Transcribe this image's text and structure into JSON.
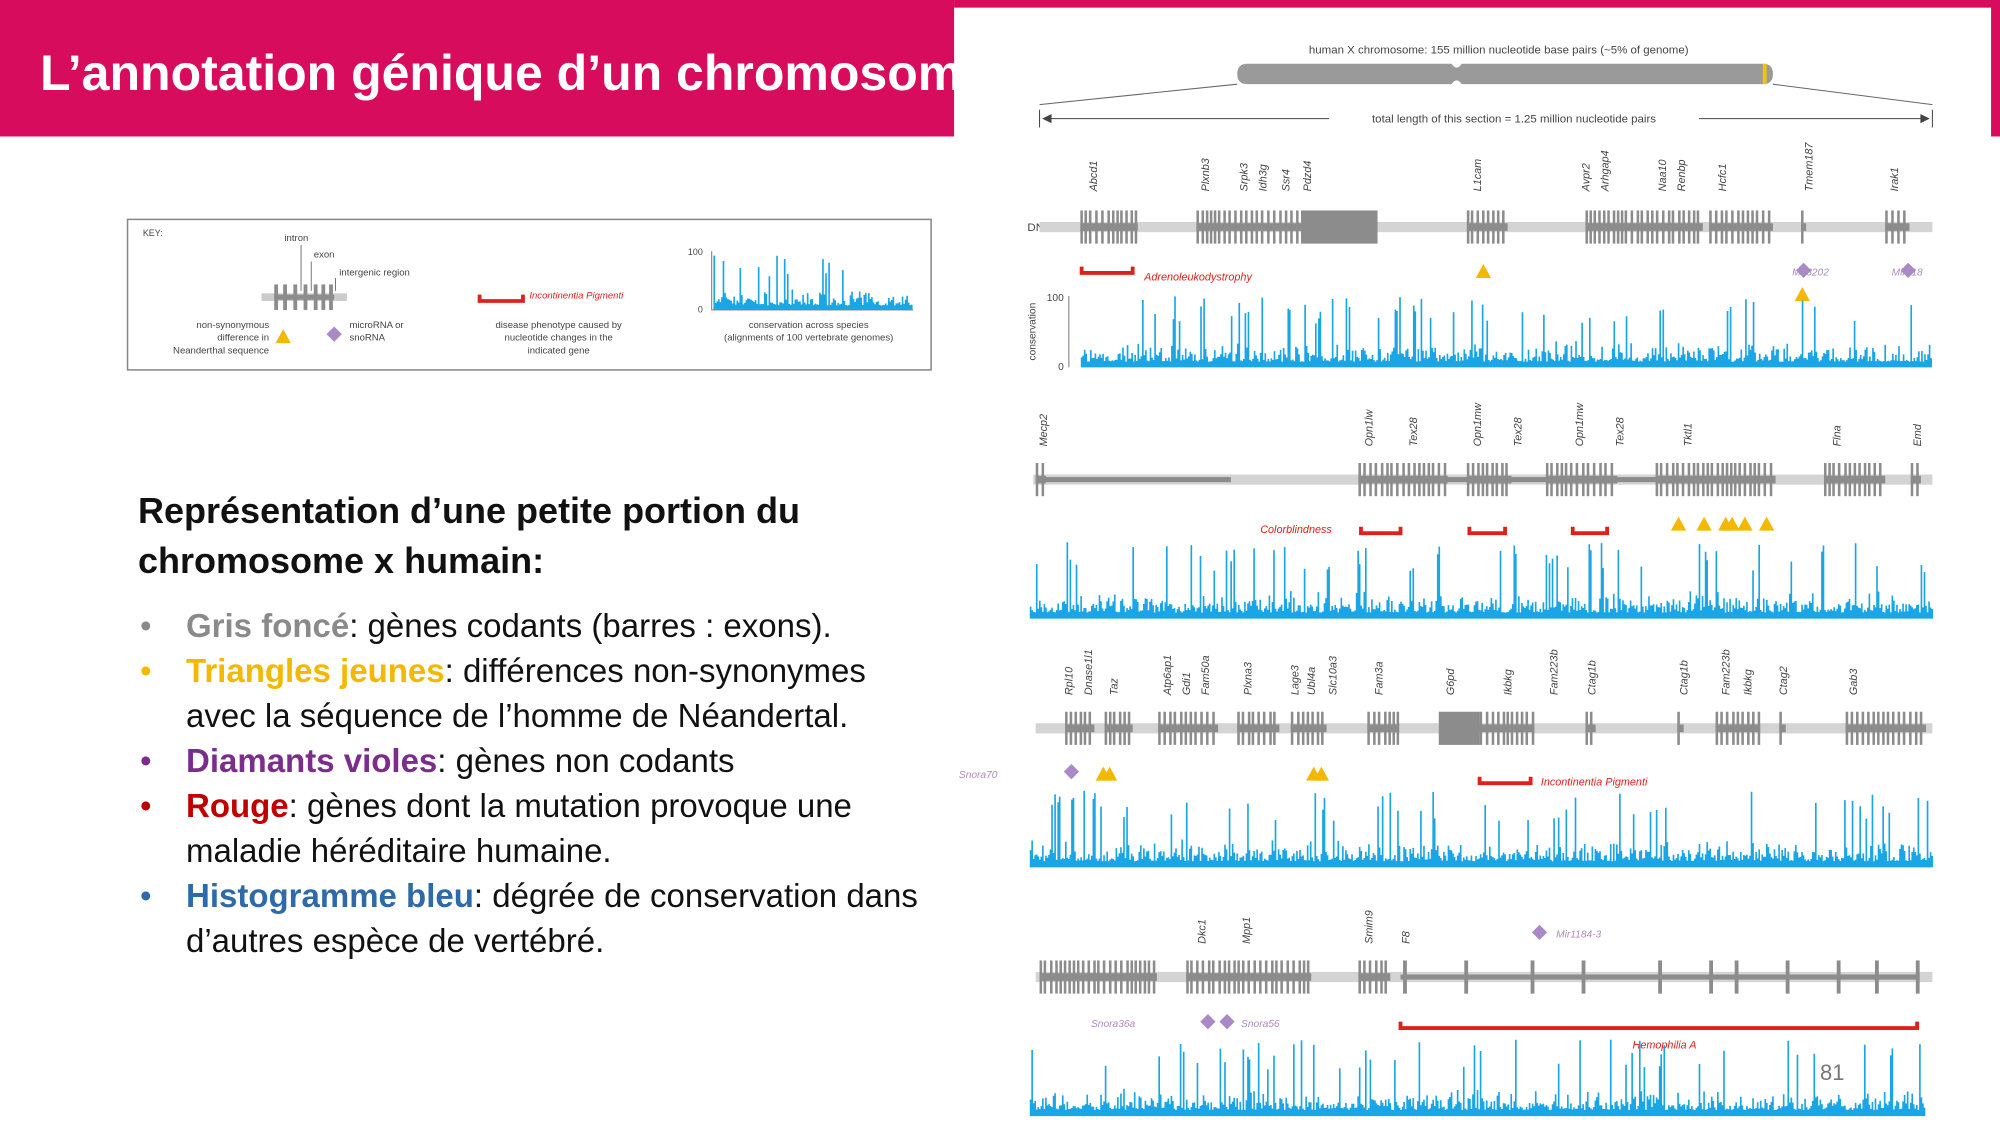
{
  "header": {
    "title": "L’annotation génique d’un chromosome"
  },
  "key": {
    "heading": "KEY:",
    "intron": "intron",
    "exon": "exon",
    "intergenic": "intergenic region",
    "neanderthal": [
      "non-synonymous",
      "difference in",
      "Neanderthal sequence"
    ],
    "mirna": [
      "microRNA or",
      "snoRNA"
    ],
    "disease_name": "Incontinentia Pigmenti",
    "disease": [
      "disease phenotype caused by",
      "nucleotide changes in the",
      "indicated gene"
    ],
    "cons_max": "100",
    "cons_min": "0",
    "conservation": [
      "conservation across species",
      "(alignments of 100 vertebrate genomes)"
    ]
  },
  "section": {
    "heading": "Représentation d’une petite portion du chromosome x humain:",
    "bullets": [
      {
        "term": "Gris foncé",
        "text": ": gènes codants (barres : exons).",
        "color": "#8a8a8a"
      },
      {
        "term": "Triangles jeunes",
        "text": ": différences non-synonymes avec la séquence de l’homme de Néandertal.",
        "color": "#f5b800"
      },
      {
        "term": "Diamants violes",
        "text": ": gènes non codants",
        "color": "#7b2c8c"
      },
      {
        "term": "Rouge",
        "text": ": gènes dont la mutation provoque une maladie héréditaire humaine.",
        "color": "#c00000"
      },
      {
        "term": "Histogramme bleu",
        "text": ": dégrée de conservation dans d’autres espèce de vertébré.",
        "color": "#2e6aa8"
      }
    ]
  },
  "figure": {
    "chromosome": "human X chromosome: 155 million nucleotide base pairs (~5% of genome)",
    "section_length": "total length of this section = 1.25 million nucleotide pairs",
    "dna": "DNA",
    "conservation": "conservation",
    "cons_max": "100",
    "cons_min": "0",
    "rows": [
      {
        "genes": [
          "Abcd1",
          "Plxnb3",
          "Srpk3",
          "Idh3g",
          "Ssr4",
          "Pdzd4",
          "L1cam",
          "Avpr2",
          "Arhgap4",
          "Naa10",
          "Renbp",
          "Hcfc1",
          "Tmem187",
          "Irak1"
        ],
        "diseases": [
          "Adrenoleukodystrophy"
        ],
        "rnas": [
          "Mir3202",
          "Mir718"
        ]
      },
      {
        "genes": [
          "Mecp2",
          "Opn1lw",
          "Tex28",
          "Opn1mw",
          "Tex28",
          "Opn1mw",
          "Tex28",
          "Tktl1",
          "Flna",
          "Emd"
        ],
        "diseases": [
          "Colorblindness"
        ],
        "rnas": []
      },
      {
        "genes": [
          "Rpl10",
          "Dnase1l1",
          "Taz",
          "Atp6ap1",
          "Gdi1",
          "Fam50a",
          "Plxna3",
          "Lage3",
          "Ubl4a",
          "Slc10a3",
          "Fam3a",
          "G6pd",
          "Ikbkg",
          "Fam223b",
          "Ctag1b",
          "Ctag1b",
          "Fam223b",
          "Ikbkg",
          "Ctag2",
          "Gab3"
        ],
        "diseases": [
          "Incontinentia Pigmenti"
        ],
        "rnas": [
          "Snora70"
        ]
      },
      {
        "genes": [
          "Dkc1",
          "Mpp1",
          "Smim9",
          "F8"
        ],
        "diseases": [
          "Hemophilia A"
        ],
        "rnas": [
          "Mir1184-3",
          "Snora36a",
          "Snora56"
        ]
      }
    ]
  },
  "page_number": "81"
}
